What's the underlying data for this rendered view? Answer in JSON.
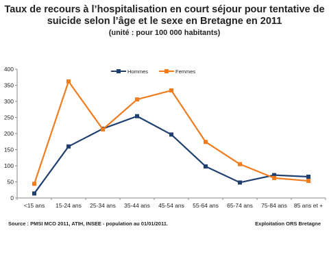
{
  "chart_data": {
    "type": "line",
    "title": "Taux de recours à l’hospitalisation en court séjour pour tentative de suicide selon l’âge et le sexe en Bretagne en 2011",
    "subtitle": "(unité : pour 100 000 habitants)",
    "xlabel": "",
    "ylabel": "",
    "categories": [
      "<15 ans",
      "15-24 ans",
      "25-34 ans",
      "35-44 ans",
      "45-54 ans",
      "55-64 ans",
      "65-74 ans",
      "75-84 ans",
      "85 ans et +"
    ],
    "ylim": [
      0,
      400
    ],
    "yticks": [
      "0",
      "50",
      "100",
      "150",
      "200",
      "250",
      "300",
      "350",
      "400"
    ],
    "grid": false,
    "legend_position": "top-center",
    "series": [
      {
        "name": "Hommes",
        "color": "#1f3f6e",
        "values": [
          14,
          160,
          215,
          254,
          197,
          98,
          48,
          71,
          66
        ]
      },
      {
        "name": "Femmes",
        "color": "#f07c1e",
        "values": [
          44,
          362,
          213,
          306,
          334,
          174,
          105,
          62,
          53
        ]
      }
    ]
  },
  "footer": {
    "source": "Source : PMSI MCO 2011, ATIH,  INSEE  - population au 01/01/2011.",
    "credit": "Exploitation ORS Bretagne"
  }
}
